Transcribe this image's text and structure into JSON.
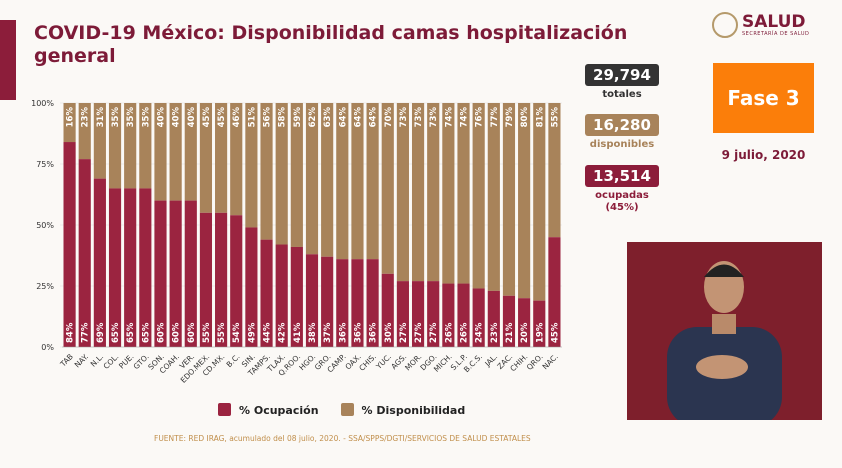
{
  "header": {
    "title": "COVID-19 México: Disponibilidad camas hospitalización general",
    "logo_text": "SALUD",
    "logo_sub": "SECRETARÍA DE SALUD"
  },
  "stats": {
    "totales": {
      "value": "29,794",
      "label": "totales"
    },
    "disponibles": {
      "value": "16,280",
      "label": "disponibles"
    },
    "ocupadas": {
      "value": "13,514",
      "label": "ocupadas",
      "pct": "(45%)"
    }
  },
  "phase": "Fase 3",
  "date": "9 julio, 2020",
  "source": "FUENTE: RED IRAG, acumulado del 08 julio, 2020. -  SSA/SPPS/DGTI/SERVICIOS DE SALUD ESTATALES",
  "colors": {
    "ocupacion": "#9b2440",
    "disponibilidad": "#a8835a",
    "totales": "#333333",
    "fase": "#fb7e0a"
  },
  "chart_data": {
    "type": "bar",
    "stacked": true,
    "categories": [
      "TAB",
      "NAY.",
      "N.L.",
      "COL.",
      "PUE.",
      "GTO.",
      "SON.",
      "COAH.",
      "VER.",
      "EDO.MEX.",
      "CD.MX.",
      "B.C.",
      "SIN.",
      "TAMPS.",
      "TLAX.",
      "Q.ROO.",
      "HGO.",
      "GRO.",
      "CAMP.",
      "OAX.",
      "CHIS.",
      "YUC.",
      "AGS.",
      "MOR.",
      "DGO.",
      "MICH.",
      "S.L.P.",
      "B.C.S.",
      "JAL.",
      "ZAC.",
      "CHIH.",
      "QRO.",
      "NAC."
    ],
    "series": [
      {
        "name": "% Ocupación",
        "values": [
          84,
          77,
          69,
          65,
          65,
          65,
          60,
          60,
          60,
          55,
          55,
          54,
          49,
          44,
          42,
          41,
          38,
          37,
          36,
          36,
          36,
          30,
          27,
          27,
          27,
          26,
          26,
          24,
          23,
          21,
          20,
          19,
          45
        ]
      },
      {
        "name": "% Disponibilidad",
        "values": [
          16,
          23,
          31,
          35,
          35,
          35,
          40,
          40,
          40,
          45,
          45,
          46,
          51,
          56,
          58,
          59,
          62,
          63,
          64,
          64,
          64,
          70,
          73,
          73,
          73,
          74,
          74,
          76,
          77,
          79,
          80,
          81,
          55
        ]
      }
    ],
    "yticks": [
      "0%",
      "25%",
      "50%",
      "75%",
      "100%"
    ],
    "ylim": [
      0,
      100
    ],
    "legend": "bottom"
  }
}
